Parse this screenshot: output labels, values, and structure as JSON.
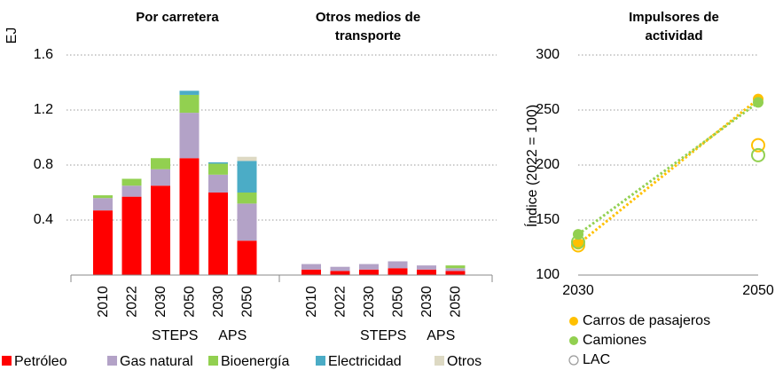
{
  "chart_data": [
    {
      "type": "bar",
      "stacked": true,
      "panel_titles": [
        "Por carretera",
        "Otros medios de transporte"
      ],
      "categories": [
        "2010",
        "2022",
        "2030",
        "2050",
        "2030",
        "2050",
        "2010",
        "2022",
        "2030",
        "2050",
        "2030",
        "2050"
      ],
      "scenario_labels": [
        "STEPS",
        "APS",
        "STEPS",
        "APS"
      ],
      "y_label": "EJ",
      "ylim": [
        0,
        1.6
      ],
      "yticks": [
        0.4,
        0.8,
        1.2,
        1.6
      ],
      "grid": true,
      "series": [
        {
          "name": "Petróleo",
          "color": "#ff0000",
          "values": [
            0.47,
            0.57,
            0.65,
            0.85,
            0.6,
            0.25,
            0.04,
            0.03,
            0.04,
            0.05,
            0.04,
            0.03
          ]
        },
        {
          "name": "Gas natural",
          "color": "#b3a2c7",
          "values": [
            0.09,
            0.08,
            0.12,
            0.33,
            0.13,
            0.27,
            0.04,
            0.03,
            0.04,
            0.05,
            0.03,
            0.02
          ]
        },
        {
          "name": "Bioenergía",
          "color": "#92d050",
          "values": [
            0.02,
            0.05,
            0.08,
            0.13,
            0.08,
            0.08,
            null,
            null,
            null,
            null,
            null,
            0.02
          ]
        },
        {
          "name": "Electricidad",
          "color": "#4bacc6",
          "values": [
            null,
            null,
            null,
            0.03,
            0.01,
            0.23,
            null,
            null,
            null,
            null,
            null,
            null
          ]
        },
        {
          "name": "Otros",
          "color": "#ddd9c3",
          "values": [
            null,
            null,
            null,
            null,
            null,
            0.03,
            null,
            null,
            null,
            null,
            null,
            null
          ]
        }
      ]
    },
    {
      "type": "line",
      "title": "Impulsores de actividad",
      "y_label": "Índice (2022 = 100)",
      "categories": [
        "2030",
        "2050"
      ],
      "ylim": [
        100,
        300
      ],
      "yticks": [
        100,
        150,
        200,
        250,
        300
      ],
      "grid": true,
      "lac_label": "LAC",
      "series": [
        {
          "name": "Carros de pasajeros",
          "color": "#ffc000",
          "values": [
            128,
            260
          ],
          "lac_values": [
            127,
            218
          ]
        },
        {
          "name": "Camiones",
          "color": "#92d050",
          "values": [
            137,
            257
          ],
          "lac_values": [
            130,
            209
          ]
        }
      ]
    }
  ]
}
